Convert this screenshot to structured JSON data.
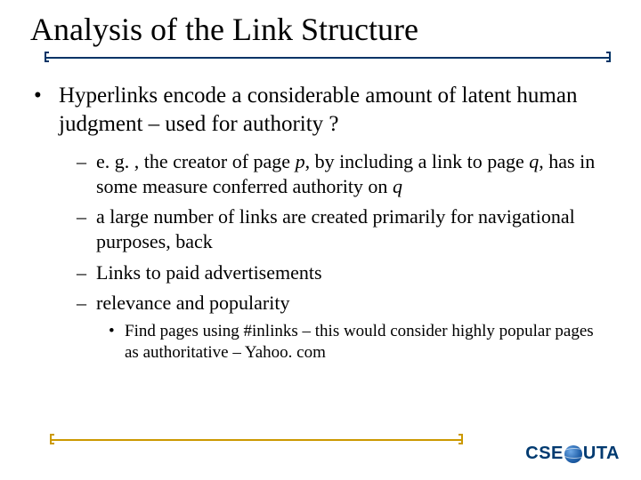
{
  "colors": {
    "title_rule": "#003366",
    "footer_rule": "#cc9900",
    "text": "#000000",
    "logo": "#003a70",
    "background": "#ffffff"
  },
  "title": "Analysis of the Link Structure",
  "bullets": {
    "l1_marker": "•",
    "l1_text": "Hyperlinks encode a considerable amount of latent human judgment – used for authority ?",
    "l2_marker": "–",
    "l2a_pre": "e. g. , the creator of page ",
    "l2a_p": "p",
    "l2a_mid": ", by including a link to page ",
    "l2a_q": "q",
    "l2a_mid2": ", has in some measure conferred authority on ",
    "l2a_q2": "q",
    "l2b": "a large number of links are created primarily for navigational purposes, back",
    "l2c": "Links to paid advertisements",
    "l2d": "relevance and popularity",
    "l3_marker": "•",
    "l3": "Find pages using #inlinks – this would consider highly popular pages as authoritative – Yahoo. com"
  },
  "logo": {
    "cse": "CSE",
    "uta": "UTA"
  }
}
